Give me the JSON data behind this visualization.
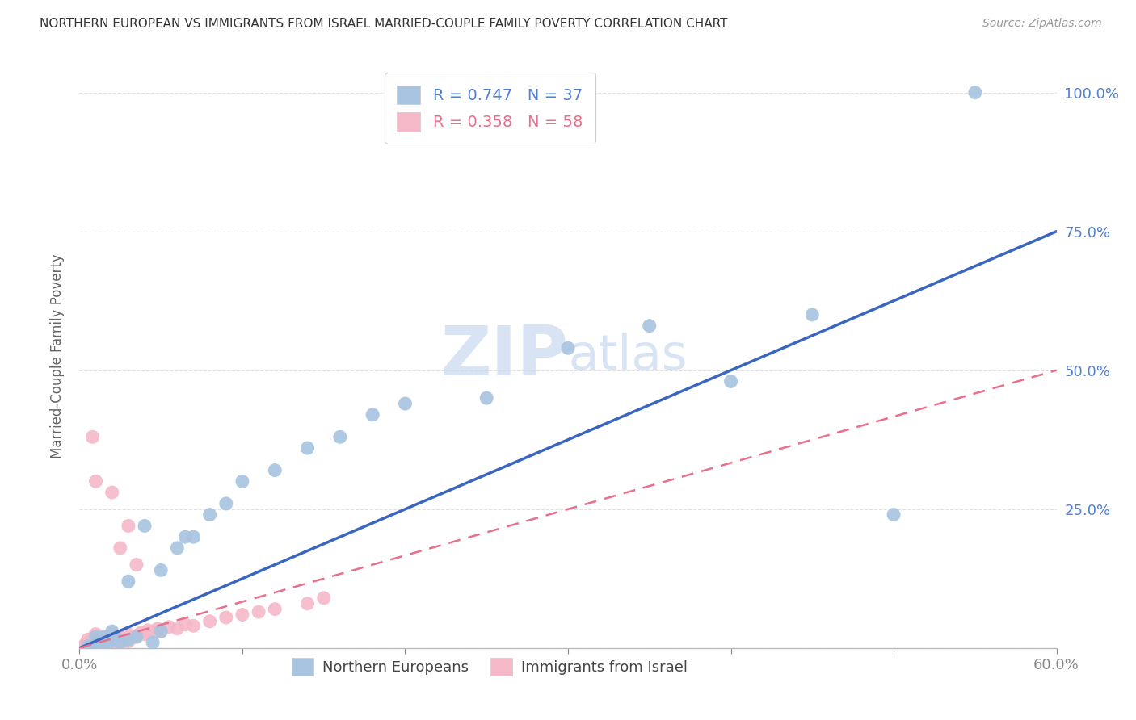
{
  "title": "NORTHERN EUROPEAN VS IMMIGRANTS FROM ISRAEL MARRIED-COUPLE FAMILY POVERTY CORRELATION CHART",
  "source": "Source: ZipAtlas.com",
  "ylabel": "Married-Couple Family Poverty",
  "xlim": [
    0.0,
    0.6
  ],
  "ylim": [
    0.0,
    1.05
  ],
  "blue_R": 0.747,
  "blue_N": 37,
  "pink_R": 0.358,
  "pink_N": 58,
  "blue_color": "#a8c4e0",
  "pink_color": "#f4b8c8",
  "blue_line_color": "#3a65c0",
  "pink_line_color": "#e8708a",
  "label_color": "#5080d0",
  "pink_label_color": "#e8708a",
  "watermark_color": "#c8d8ee",
  "background_color": "#ffffff",
  "grid_color": "#e0e0e0",
  "axis_color": "#bbbbbb",
  "blue_line_x": [
    0.0,
    0.6
  ],
  "blue_line_y": [
    0.0,
    0.75
  ],
  "pink_line_x": [
    0.0,
    0.6
  ],
  "pink_line_y": [
    0.0,
    0.5
  ],
  "blue_points_x": [
    0.005,
    0.008,
    0.01,
    0.01,
    0.012,
    0.015,
    0.015,
    0.018,
    0.02,
    0.02,
    0.022,
    0.025,
    0.03,
    0.03,
    0.035,
    0.04,
    0.045,
    0.05,
    0.05,
    0.06,
    0.065,
    0.07,
    0.08,
    0.09,
    0.1,
    0.12,
    0.14,
    0.16,
    0.18,
    0.2,
    0.25,
    0.3,
    0.35,
    0.4,
    0.45,
    0.5,
    0.55
  ],
  "blue_points_y": [
    0.003,
    0.005,
    0.01,
    0.02,
    0.005,
    0.01,
    0.02,
    0.01,
    0.015,
    0.03,
    0.02,
    0.01,
    0.015,
    0.12,
    0.02,
    0.22,
    0.01,
    0.03,
    0.14,
    0.18,
    0.2,
    0.2,
    0.24,
    0.26,
    0.3,
    0.32,
    0.36,
    0.38,
    0.42,
    0.44,
    0.45,
    0.54,
    0.58,
    0.48,
    0.6,
    0.24,
    1.0
  ],
  "pink_points_x": [
    0.002,
    0.003,
    0.004,
    0.005,
    0.005,
    0.006,
    0.007,
    0.008,
    0.008,
    0.009,
    0.01,
    0.01,
    0.01,
    0.01,
    0.012,
    0.012,
    0.013,
    0.014,
    0.015,
    0.015,
    0.016,
    0.017,
    0.018,
    0.019,
    0.02,
    0.02,
    0.02,
    0.022,
    0.025,
    0.025,
    0.028,
    0.03,
    0.03,
    0.032,
    0.035,
    0.038,
    0.04,
    0.042,
    0.045,
    0.048,
    0.05,
    0.055,
    0.06,
    0.065,
    0.07,
    0.08,
    0.09,
    0.1,
    0.11,
    0.12,
    0.14,
    0.15,
    0.02,
    0.025,
    0.03,
    0.035,
    0.01,
    0.008
  ],
  "pink_points_y": [
    0.002,
    0.005,
    0.003,
    0.008,
    0.015,
    0.004,
    0.01,
    0.006,
    0.018,
    0.01,
    0.004,
    0.008,
    0.015,
    0.025,
    0.005,
    0.012,
    0.008,
    0.018,
    0.005,
    0.015,
    0.01,
    0.02,
    0.008,
    0.015,
    0.005,
    0.012,
    0.025,
    0.015,
    0.008,
    0.02,
    0.015,
    0.012,
    0.025,
    0.018,
    0.022,
    0.028,
    0.025,
    0.032,
    0.028,
    0.035,
    0.03,
    0.038,
    0.035,
    0.042,
    0.04,
    0.048,
    0.055,
    0.06,
    0.065,
    0.07,
    0.08,
    0.09,
    0.28,
    0.18,
    0.22,
    0.15,
    0.3,
    0.38
  ]
}
